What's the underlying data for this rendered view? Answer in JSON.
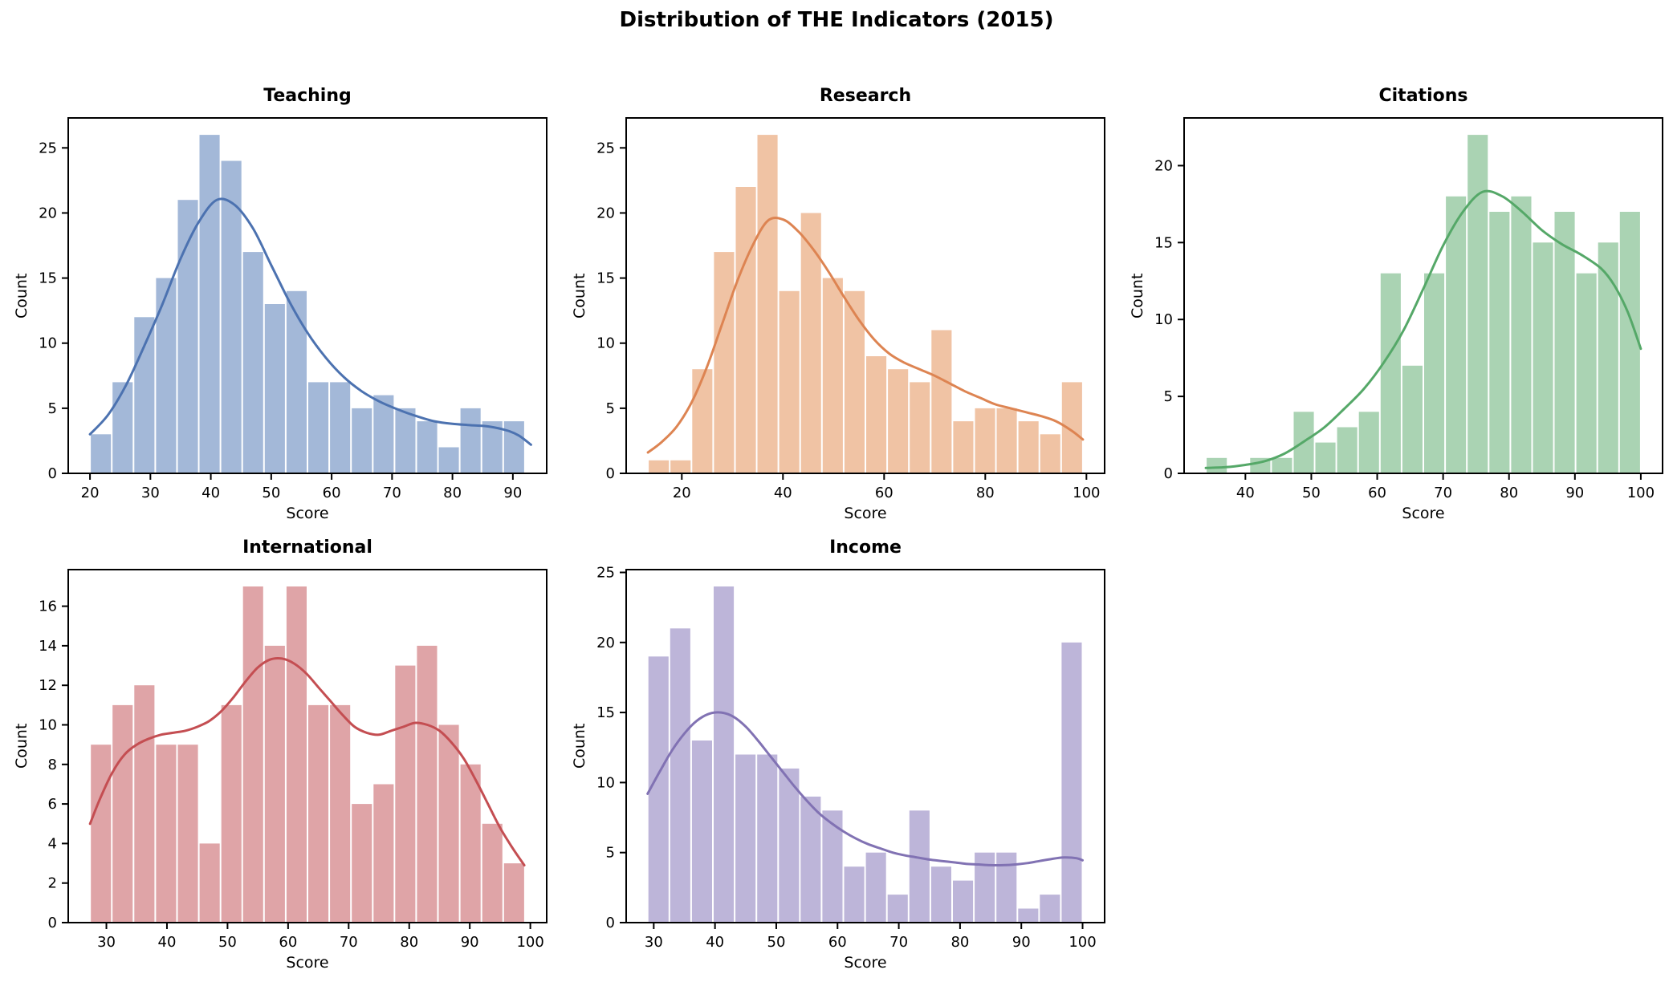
{
  "figure_title": "Distribution of THE Indicators (2015)",
  "chart_data": [
    {
      "type": "bar",
      "title": "Teaching",
      "xlabel": "Score",
      "ylabel": "Count",
      "bin_start": 20,
      "bin_width": 3.6,
      "values": [
        3,
        7,
        12,
        15,
        21,
        26,
        24,
        17,
        13,
        14,
        7,
        7,
        5,
        6,
        5,
        4,
        2,
        5,
        4,
        4
      ],
      "xlim": [
        16.4,
        95.6
      ],
      "ylim": [
        0,
        27.3
      ],
      "xticks": [
        20,
        30,
        40,
        50,
        60,
        70,
        80,
        90
      ],
      "yticks": [
        0,
        5,
        10,
        15,
        20,
        25
      ],
      "bar_color": "#a3b8d8",
      "line_color": "#4c72b0",
      "legend": "none",
      "grid": "off",
      "kde_line": [
        [
          20,
          3
        ],
        [
          23,
          4.5
        ],
        [
          26,
          6.8
        ],
        [
          29,
          9.8
        ],
        [
          32,
          13
        ],
        [
          35,
          16.5
        ],
        [
          38,
          19.3
        ],
        [
          41,
          21
        ],
        [
          44,
          20.6
        ],
        [
          47,
          18.8
        ],
        [
          50,
          16
        ],
        [
          53,
          13.2
        ],
        [
          56,
          10.8
        ],
        [
          59,
          8.9
        ],
        [
          62,
          7.4
        ],
        [
          65,
          6.3
        ],
        [
          68,
          5.5
        ],
        [
          71,
          4.9
        ],
        [
          74,
          4.4
        ],
        [
          77,
          4.0
        ],
        [
          80,
          3.8
        ],
        [
          83,
          3.7
        ],
        [
          86,
          3.6
        ],
        [
          89,
          3.3
        ],
        [
          91,
          2.9
        ],
        [
          93,
          2.2
        ]
      ]
    },
    {
      "type": "bar",
      "title": "Research",
      "xlabel": "Score",
      "ylabel": "Count",
      "bin_start": 13.3,
      "bin_width": 4.3,
      "values": [
        1,
        1,
        8,
        17,
        22,
        26,
        14,
        20,
        15,
        14,
        9,
        8,
        7,
        11,
        4,
        5,
        5,
        4,
        3,
        7
      ],
      "xlim": [
        9.0,
        103.6
      ],
      "ylim": [
        0,
        27.3
      ],
      "xticks": [
        20,
        40,
        60,
        80,
        100
      ],
      "yticks": [
        0,
        5,
        10,
        15,
        20,
        25
      ],
      "bar_color": "#f0c3a4",
      "line_color": "#dd8452",
      "legend": "none",
      "grid": "off",
      "kde_line": [
        [
          13.3,
          1.6
        ],
        [
          16,
          2.4
        ],
        [
          19,
          3.6
        ],
        [
          22,
          5.5
        ],
        [
          25,
          8.2
        ],
        [
          28,
          11.5
        ],
        [
          31,
          14.8
        ],
        [
          34,
          17.5
        ],
        [
          37,
          19.4
        ],
        [
          40,
          19.5
        ],
        [
          43,
          18.6
        ],
        [
          46,
          17.2
        ],
        [
          49,
          15.5
        ],
        [
          52,
          13.6
        ],
        [
          55,
          11.8
        ],
        [
          58,
          10.3
        ],
        [
          61,
          9.2
        ],
        [
          64,
          8.5
        ],
        [
          67,
          8.0
        ],
        [
          70,
          7.5
        ],
        [
          73,
          6.9
        ],
        [
          76,
          6.3
        ],
        [
          79,
          5.8
        ],
        [
          82,
          5.3
        ],
        [
          85,
          5.0
        ],
        [
          88,
          4.7
        ],
        [
          91,
          4.4
        ],
        [
          94,
          4.0
        ],
        [
          97,
          3.3
        ],
        [
          99.3,
          2.6
        ]
      ]
    },
    {
      "type": "bar",
      "title": "Citations",
      "xlabel": "Score",
      "ylabel": "Count",
      "bin_start": 34,
      "bin_width": 3.3,
      "values": [
        1,
        0,
        1,
        1,
        4,
        2,
        3,
        4,
        13,
        7,
        13,
        18,
        22,
        17,
        18,
        15,
        17,
        13,
        15,
        17
      ],
      "xlim": [
        30.7,
        103.3
      ],
      "ylim": [
        0,
        23.1
      ],
      "xticks": [
        40,
        50,
        60,
        70,
        80,
        90,
        100
      ],
      "yticks": [
        0,
        5,
        10,
        15,
        20
      ],
      "bar_color": "#aad3b3",
      "line_color": "#55a868",
      "legend": "none",
      "grid": "off",
      "kde_line": [
        [
          34,
          0.35
        ],
        [
          37,
          0.4
        ],
        [
          40,
          0.55
        ],
        [
          43,
          0.8
        ],
        [
          46,
          1.3
        ],
        [
          49,
          2.1
        ],
        [
          52,
          3.0
        ],
        [
          55,
          4.2
        ],
        [
          58,
          5.5
        ],
        [
          61,
          7.2
        ],
        [
          64,
          9.3
        ],
        [
          67,
          12
        ],
        [
          70,
          14.8
        ],
        [
          73,
          17
        ],
        [
          76,
          18.3
        ],
        [
          79,
          18
        ],
        [
          82,
          17
        ],
        [
          85,
          15.8
        ],
        [
          88,
          14.9
        ],
        [
          91,
          14.2
        ],
        [
          94,
          13.3
        ],
        [
          96,
          12.2
        ],
        [
          98,
          10.5
        ],
        [
          100,
          8.1
        ]
      ]
    },
    {
      "type": "bar",
      "title": "International",
      "xlabel": "Score",
      "ylabel": "Count",
      "bin_start": 27.3,
      "bin_width": 3.59,
      "values": [
        9,
        11,
        12,
        9,
        9,
        4,
        11,
        17,
        14,
        17,
        11,
        11,
        6,
        7,
        13,
        14,
        10,
        8,
        5,
        3
      ],
      "xlim": [
        23.7,
        102.7
      ],
      "ylim": [
        0,
        17.85
      ],
      "xticks": [
        30,
        40,
        50,
        60,
        70,
        80,
        90,
        100
      ],
      "yticks": [
        0,
        2,
        4,
        6,
        8,
        10,
        12,
        14,
        16
      ],
      "bar_color": "#dfa4a7",
      "line_color": "#c44e52",
      "legend": "none",
      "grid": "off",
      "kde_line": [
        [
          27.3,
          5
        ],
        [
          29,
          6.3
        ],
        [
          31,
          7.6
        ],
        [
          33,
          8.5
        ],
        [
          35,
          9.0
        ],
        [
          37,
          9.3
        ],
        [
          39,
          9.5
        ],
        [
          41,
          9.6
        ],
        [
          43,
          9.7
        ],
        [
          45,
          9.9
        ],
        [
          47,
          10.2
        ],
        [
          49,
          10.7
        ],
        [
          51,
          11.4
        ],
        [
          53,
          12.2
        ],
        [
          55,
          12.9
        ],
        [
          57,
          13.3
        ],
        [
          59,
          13.35
        ],
        [
          61,
          13.1
        ],
        [
          63,
          12.6
        ],
        [
          65,
          11.9
        ],
        [
          67,
          11.2
        ],
        [
          69,
          10.5
        ],
        [
          71,
          9.9
        ],
        [
          73,
          9.6
        ],
        [
          75,
          9.5
        ],
        [
          77,
          9.7
        ],
        [
          79,
          9.9
        ],
        [
          81,
          10.1
        ],
        [
          83,
          10.0
        ],
        [
          85,
          9.7
        ],
        [
          87,
          9.1
        ],
        [
          89,
          8.3
        ],
        [
          91,
          7.2
        ],
        [
          93,
          6.0
        ],
        [
          95,
          4.8
        ],
        [
          97,
          3.8
        ],
        [
          99,
          2.9
        ]
      ]
    },
    {
      "type": "bar",
      "title": "Income",
      "xlabel": "Score",
      "ylabel": "Count",
      "bin_start": 29,
      "bin_width": 3.55,
      "values": [
        19,
        21,
        13,
        24,
        12,
        12,
        11,
        9,
        8,
        4,
        5,
        2,
        8,
        4,
        3,
        5,
        5,
        1,
        2,
        20
      ],
      "xlim": [
        25.5,
        103.6
      ],
      "ylim": [
        0,
        25.2
      ],
      "xticks": [
        30,
        40,
        50,
        60,
        70,
        80,
        90,
        100
      ],
      "yticks": [
        0,
        5,
        10,
        15,
        20,
        25
      ],
      "bar_color": "#bdb5d9",
      "line_color": "#8172b3",
      "legend": "none",
      "grid": "off",
      "kde_line": [
        [
          29,
          9.2
        ],
        [
          31,
          10.8
        ],
        [
          33,
          12.3
        ],
        [
          35,
          13.5
        ],
        [
          37,
          14.4
        ],
        [
          39,
          14.9
        ],
        [
          41,
          15.0
        ],
        [
          43,
          14.7
        ],
        [
          45,
          14.0
        ],
        [
          47,
          13.0
        ],
        [
          49,
          11.9
        ],
        [
          51,
          10.8
        ],
        [
          53,
          9.7
        ],
        [
          55,
          8.7
        ],
        [
          57,
          7.8
        ],
        [
          59,
          7.1
        ],
        [
          61,
          6.5
        ],
        [
          63,
          6.0
        ],
        [
          65,
          5.6
        ],
        [
          67,
          5.3
        ],
        [
          69,
          5.0
        ],
        [
          71,
          4.8
        ],
        [
          73,
          4.65
        ],
        [
          75,
          4.5
        ],
        [
          77,
          4.4
        ],
        [
          79,
          4.3
        ],
        [
          81,
          4.2
        ],
        [
          83,
          4.15
        ],
        [
          85,
          4.1
        ],
        [
          87,
          4.1
        ],
        [
          89,
          4.15
        ],
        [
          91,
          4.25
        ],
        [
          93,
          4.4
        ],
        [
          95,
          4.55
        ],
        [
          97,
          4.65
        ],
        [
          99,
          4.6
        ],
        [
          100,
          4.45
        ]
      ]
    }
  ]
}
